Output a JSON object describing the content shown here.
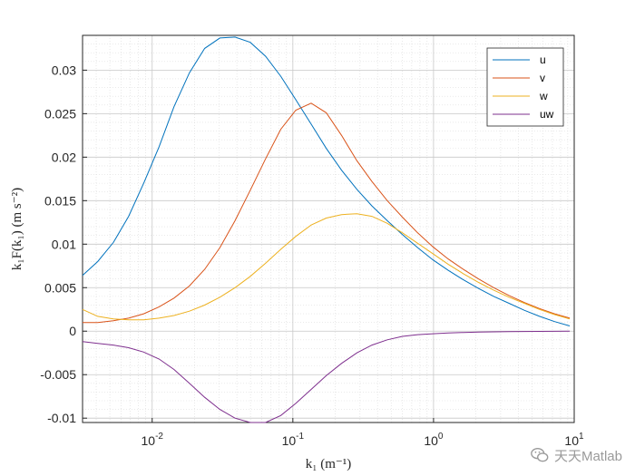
{
  "chart_data": {
    "type": "line",
    "xscale": "log",
    "xlim": [
      0.0032,
      10
    ],
    "ylim": [
      -0.0105,
      0.034
    ],
    "grid": true,
    "minor_grid": true,
    "legend_position": "top-right",
    "xlabel": "k₁ (m⁻¹)",
    "ylabel": "k₁F(k₁)  (m s⁻²)",
    "x_ticks": [
      {
        "value": 0.01,
        "base": "10",
        "exp": "-2"
      },
      {
        "value": 0.1,
        "base": "10",
        "exp": "-1"
      },
      {
        "value": 1,
        "base": "10",
        "exp": "0"
      },
      {
        "value": 10,
        "base": "10",
        "exp": "1"
      }
    ],
    "y_ticks": [
      {
        "value": 0.03,
        "label": "0.03"
      },
      {
        "value": 0.025,
        "label": "0.025"
      },
      {
        "value": 0.02,
        "label": "0.02"
      },
      {
        "value": 0.015,
        "label": "0.015"
      },
      {
        "value": 0.01,
        "label": "0.01"
      },
      {
        "value": 0.005,
        "label": "0.005"
      },
      {
        "value": 0,
        "label": "0"
      },
      {
        "value": -0.005,
        "label": "-0.005"
      },
      {
        "value": -0.01,
        "label": "-0.01"
      }
    ],
    "x": [
      0.0032,
      0.0041,
      0.0053,
      0.0068,
      0.0087,
      0.0112,
      0.0143,
      0.0184,
      0.0236,
      0.0303,
      0.0388,
      0.0498,
      0.0639,
      0.082,
      0.105,
      0.135,
      0.173,
      0.222,
      0.285,
      0.365,
      0.469,
      0.601,
      0.771,
      0.989,
      1.27,
      1.63,
      2.09,
      2.68,
      3.44,
      4.41,
      5.66,
      7.26,
      9.3
    ],
    "series": [
      {
        "name": "u",
        "color": "#0072BD",
        "values": [
          0.0064,
          0.008,
          0.0102,
          0.0132,
          0.017,
          0.0212,
          0.0258,
          0.0297,
          0.0325,
          0.0337,
          0.0338,
          0.0332,
          0.0316,
          0.0293,
          0.0266,
          0.0238,
          0.021,
          0.0185,
          0.0163,
          0.0144,
          0.0127,
          0.0111,
          0.0096,
          0.0082,
          0.007,
          0.0059,
          0.0049,
          0.004,
          0.0032,
          0.0024,
          0.0017,
          0.0011,
          0.0006
        ]
      },
      {
        "name": "v",
        "color": "#D95319",
        "values": [
          0.001,
          0.001,
          0.0012,
          0.0015,
          0.002,
          0.0028,
          0.0038,
          0.0052,
          0.0071,
          0.0096,
          0.0127,
          0.0162,
          0.0198,
          0.0232,
          0.0254,
          0.0262,
          0.0251,
          0.0225,
          0.0196,
          0.0172,
          0.015,
          0.0131,
          0.0113,
          0.0097,
          0.0083,
          0.0071,
          0.006,
          0.005,
          0.0041,
          0.0033,
          0.0026,
          0.002,
          0.0015
        ]
      },
      {
        "name": "w",
        "color": "#EDB120",
        "values": [
          0.0025,
          0.0017,
          0.0014,
          0.0013,
          0.0013,
          0.0015,
          0.0018,
          0.0023,
          0.003,
          0.0039,
          0.005,
          0.0063,
          0.0078,
          0.0094,
          0.0109,
          0.0122,
          0.013,
          0.0134,
          0.0135,
          0.0132,
          0.0124,
          0.0113,
          0.0101,
          0.0089,
          0.0077,
          0.0066,
          0.0056,
          0.0047,
          0.0039,
          0.0032,
          0.0025,
          0.0019,
          0.0014
        ]
      },
      {
        "name": "uw",
        "color": "#7E2F8E",
        "values": [
          -0.0012,
          -0.0014,
          -0.0016,
          -0.0019,
          -0.0024,
          -0.0032,
          -0.0044,
          -0.006,
          -0.0076,
          -0.009,
          -0.01,
          -0.0105,
          -0.0105,
          -0.0097,
          -0.0083,
          -0.0067,
          -0.0051,
          -0.0037,
          -0.0025,
          -0.0016,
          -0.001,
          -0.0006,
          -0.0004,
          -0.0003,
          -0.0002,
          -0.00015,
          -0.0001,
          -8e-05,
          -6e-05,
          -4e-05,
          -3e-05,
          -2e-05,
          -1e-05
        ]
      }
    ]
  },
  "watermark": {
    "text": "天天Matlab",
    "icon": "wechat-icon"
  }
}
